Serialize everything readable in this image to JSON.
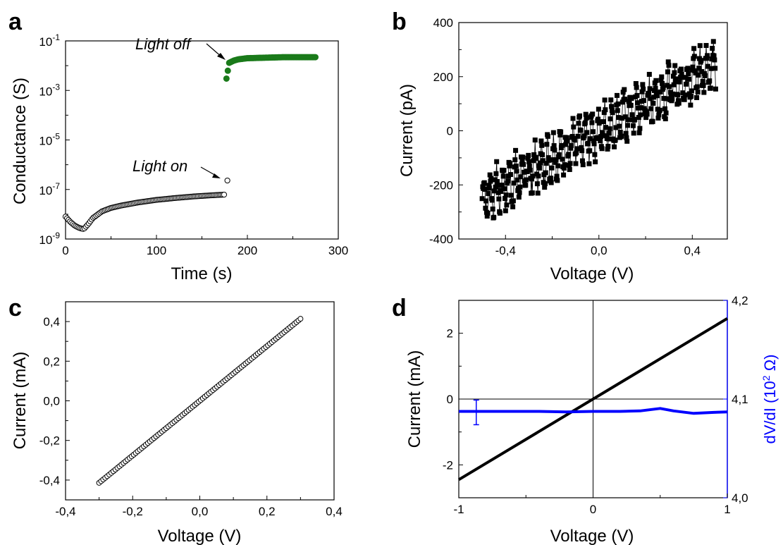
{
  "chart_data": [
    {
      "panel": "a",
      "type": "scatter",
      "xlabel": "Time (s)",
      "ylabel": "Conductance (S)",
      "xlim": [
        0,
        300
      ],
      "ylim": [
        1e-09,
        0.1
      ],
      "yscale": "log",
      "xticks": [
        "0",
        "100",
        "200",
        "300"
      ],
      "yticks": [
        {
          "base": "10",
          "exp": "-9"
        },
        {
          "base": "10",
          "exp": "-7"
        },
        {
          "base": "10",
          "exp": "-5"
        },
        {
          "base": "10",
          "exp": "-3"
        },
        {
          "base": "10",
          "exp": "-1"
        }
      ],
      "annotations": [
        "Light off",
        "Light on"
      ],
      "series": [
        {
          "color": "#000000",
          "marker": "open-circle",
          "description_points": [
            [
              0,
              8e-09
            ],
            [
              5,
              5e-09
            ],
            [
              10,
              3.5e-09
            ],
            [
              15,
              2.8e-09
            ],
            [
              20,
              2.5e-09
            ],
            [
              25,
              4e-09
            ],
            [
              30,
              7e-09
            ],
            [
              40,
              1.3e-08
            ],
            [
              50,
              1.8e-08
            ],
            [
              60,
              2.2e-08
            ],
            [
              80,
              3e-08
            ],
            [
              100,
              3.8e-08
            ],
            [
              120,
              4.5e-08
            ],
            [
              140,
              5.2e-08
            ],
            [
              160,
              5.8e-08
            ],
            [
              175,
              6.2e-08
            ],
            [
              178,
              2.3e-07
            ]
          ]
        },
        {
          "color": "#1a7a1a",
          "marker": "filled-circle",
          "description_points": [
            [
              177,
              0.003
            ],
            [
              180,
              0.013
            ],
            [
              185,
              0.016
            ],
            [
              190,
              0.018
            ],
            [
              200,
              0.02
            ],
            [
              220,
              0.021
            ],
            [
              240,
              0.022
            ],
            [
              260,
              0.022
            ],
            [
              275,
              0.022
            ]
          ]
        }
      ]
    },
    {
      "panel": "b",
      "type": "line",
      "xlabel": "Voltage (V)",
      "ylabel": "Current (pA)",
      "xlim": [
        -0.6,
        0.55
      ],
      "ylim": [
        -400,
        400
      ],
      "xticks": [
        "-0,4",
        "0,0",
        "0,4"
      ],
      "yticks": [
        "-400",
        "-200",
        "0",
        "200",
        "400"
      ],
      "series": [
        {
          "color": "#000000",
          "marker": "filled-square",
          "description_points": [
            [
              -0.5,
              -250
            ],
            [
              -0.4,
              -200
            ],
            [
              -0.3,
              -150
            ],
            [
              -0.2,
              -100
            ],
            [
              -0.1,
              -50
            ],
            [
              0.0,
              0
            ],
            [
              0.1,
              50
            ],
            [
              0.2,
              100
            ],
            [
              0.3,
              150
            ],
            [
              0.4,
              200
            ],
            [
              0.5,
              250
            ]
          ],
          "noise_amplitude": 95
        }
      ]
    },
    {
      "panel": "c",
      "type": "scatter",
      "xlabel": "Voltage (V)",
      "ylabel": "Current (mA)",
      "xlim": [
        -0.4,
        0.4
      ],
      "ylim": [
        -0.5,
        0.5
      ],
      "xticks": [
        "-0,4",
        "-0,2",
        "0,0",
        "0,2",
        "0,4"
      ],
      "yticks": [
        "-0,4",
        "-0,2",
        "0,0",
        "0,2",
        "0,4"
      ],
      "series": [
        {
          "color": "#000000",
          "marker": "open-circle",
          "x_range": [
            -0.3,
            0.3
          ],
          "slope": 1.38,
          "count": 100
        }
      ]
    },
    {
      "panel": "d",
      "type": "line",
      "xlabel": "Voltage (V)",
      "ylabel": "Current (mA)",
      "ylabel_right": "dV/dI (10",
      "ylabel_right_exp": "2",
      "ylabel_right_unit": " Ω)",
      "xlim": [
        -1,
        1
      ],
      "ylim": [
        -3,
        3
      ],
      "ylim_right": [
        4.0,
        4.2
      ],
      "xticks": [
        "-1",
        "0",
        "1"
      ],
      "yticks": [
        "-2",
        "0",
        "2"
      ],
      "yticks_right": [
        "4,0",
        "4,1",
        "4,2"
      ],
      "series": [
        {
          "axis": "left",
          "color": "#000000",
          "x": [
            -1,
            1
          ],
          "y": [
            -2.45,
            2.45
          ]
        },
        {
          "axis": "right",
          "color": "#0000ff",
          "x": [
            -1,
            -0.8,
            -0.6,
            -0.4,
            -0.2,
            0.0,
            0.2,
            0.35,
            0.5,
            0.6,
            0.75,
            0.9,
            1.0
          ],
          "y": [
            4.0875,
            4.0875,
            4.0875,
            4.0875,
            4.087,
            4.0875,
            4.0875,
            4.088,
            4.0905,
            4.088,
            4.0855,
            4.0865,
            4.087
          ],
          "error_bar": {
            "x": -0.87,
            "y": 4.0865,
            "err": 0.0125
          }
        }
      ]
    }
  ]
}
